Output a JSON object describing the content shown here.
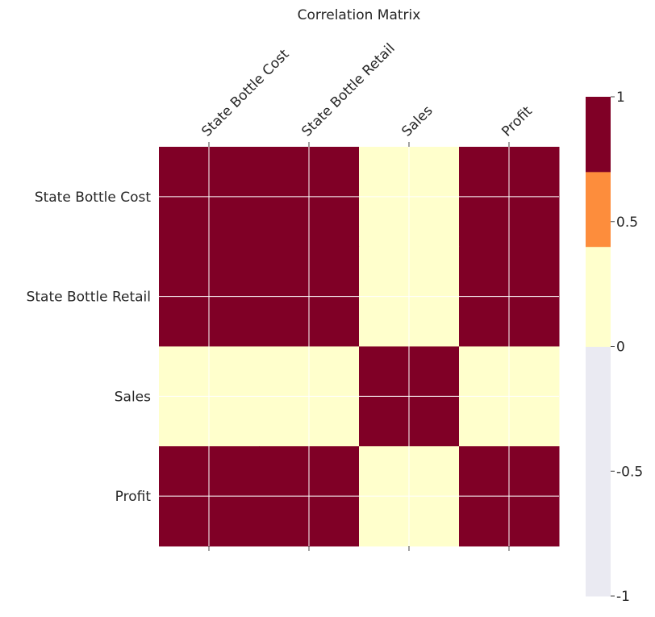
{
  "chart_data": {
    "type": "heatmap",
    "title": "Correlation Matrix",
    "x_categories": [
      "State Bottle Cost",
      "State Bottle Retail",
      "Sales",
      "Profit"
    ],
    "y_categories": [
      "State Bottle Cost",
      "State Bottle Retail",
      "Sales",
      "Profit"
    ],
    "values": [
      [
        1.0,
        1.0,
        0.35,
        1.0
      ],
      [
        1.0,
        1.0,
        0.35,
        1.0
      ],
      [
        0.35,
        0.35,
        1.0,
        0.35
      ],
      [
        1.0,
        1.0,
        0.35,
        1.0
      ]
    ],
    "colorbar": {
      "range": [
        -1,
        1
      ],
      "tick_values": [
        1,
        0.5,
        0,
        -0.5,
        -1
      ],
      "tick_labels": [
        "1",
        "0.5",
        "0",
        "-0.5",
        "-1"
      ],
      "bins": [
        {
          "from": -1.0,
          "to": 0.0,
          "color": "#eaeaf2"
        },
        {
          "from": 0.0,
          "to": 0.4,
          "color": "#ffffcc"
        },
        {
          "from": 0.4,
          "to": 0.7,
          "color": "#fd8d3c"
        },
        {
          "from": 0.7,
          "to": 1.0,
          "color": "#800026"
        }
      ]
    },
    "grid": true,
    "grid_color": "#ffffff"
  }
}
